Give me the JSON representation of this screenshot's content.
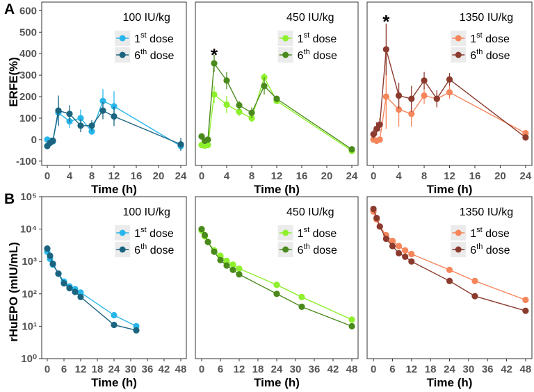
{
  "panel_labels": [
    "A",
    "B"
  ],
  "chart_data": [
    {
      "type": "line",
      "group": "A",
      "title": "100 IU/kg",
      "xlabel": "Time (h)",
      "ylabel": "ERFE(%)",
      "xlim": [
        -1,
        25
      ],
      "ylim": [
        -120,
        640
      ],
      "xticks": [
        0,
        4,
        8,
        12,
        16,
        20,
        24
      ],
      "yticks": [
        -100,
        0,
        100,
        200,
        300,
        400,
        500,
        600
      ],
      "series": [
        {
          "name": "1st dose",
          "color": "#29b6ea",
          "x": [
            0,
            0.5,
            1,
            2,
            4,
            6,
            8,
            10,
            12,
            24
          ],
          "y": [
            0,
            -5,
            -8,
            125,
            85,
            100,
            38,
            180,
            155,
            -30
          ],
          "err": [
            10,
            10,
            10,
            60,
            30,
            40,
            15,
            55,
            70,
            15
          ]
        },
        {
          "name": "6th dose",
          "color": "#1b6480",
          "x": [
            0,
            0.5,
            1,
            2,
            4,
            6,
            8,
            10,
            12,
            24
          ],
          "y": [
            -30,
            -15,
            -5,
            135,
            120,
            65,
            65,
            135,
            108,
            -22
          ],
          "err": [
            15,
            12,
            12,
            70,
            40,
            30,
            25,
            40,
            45,
            30
          ]
        }
      ],
      "star": null
    },
    {
      "type": "line",
      "group": "A",
      "title": "450 IU/kg",
      "xlabel": "Time (h)",
      "ylabel": "",
      "xlim": [
        -1,
        25
      ],
      "ylim": [
        -120,
        640
      ],
      "xticks": [
        0,
        4,
        8,
        12,
        16,
        20,
        24
      ],
      "yticks": [],
      "series": [
        {
          "name": "1st dose",
          "color": "#8ef02c",
          "x": [
            0,
            0.5,
            1,
            2,
            4,
            6,
            8,
            10,
            12,
            24
          ],
          "y": [
            -25,
            -28,
            -25,
            210,
            163,
            130,
            100,
            290,
            180,
            -52
          ],
          "err": [
            10,
            10,
            10,
            40,
            40,
            20,
            20,
            20,
            15,
            15
          ]
        },
        {
          "name": "6th dose",
          "color": "#4a8a1c",
          "x": [
            0,
            0.5,
            1,
            2,
            4,
            6,
            8,
            10,
            12,
            24
          ],
          "y": [
            15,
            -5,
            0,
            355,
            275,
            160,
            125,
            250,
            190,
            -45
          ],
          "err": [
            10,
            10,
            10,
            40,
            40,
            20,
            25,
            40,
            15,
            15
          ]
        }
      ],
      "star": {
        "label": "*",
        "x": 2,
        "y": 395
      }
    },
    {
      "type": "line",
      "group": "A",
      "title": "1350 IU/kg",
      "xlabel": "Time (h)",
      "ylabel": "",
      "xlim": [
        -1,
        25
      ],
      "ylim": [
        -120,
        640
      ],
      "xticks": [
        0,
        4,
        8,
        12,
        16,
        20,
        24
      ],
      "yticks": [],
      "series": [
        {
          "name": "1st dose",
          "color": "#f5855a",
          "x": [
            0,
            0.5,
            1,
            2,
            4,
            6,
            8,
            10,
            12,
            24
          ],
          "y": [
            0,
            -5,
            0,
            200,
            140,
            120,
            205,
            190,
            220,
            30
          ],
          "err": [
            10,
            10,
            10,
            150,
            80,
            60,
            40,
            30,
            30,
            15
          ]
        },
        {
          "name": "6th dose",
          "color": "#8b3a2e",
          "x": [
            0,
            0.5,
            1,
            2,
            4,
            6,
            8,
            10,
            12,
            24
          ],
          "y": [
            25,
            50,
            70,
            420,
            205,
            190,
            275,
            190,
            280,
            10
          ],
          "err": [
            20,
            30,
            30,
            120,
            60,
            60,
            40,
            40,
            30,
            15
          ]
        }
      ],
      "star": {
        "label": "*",
        "x": 2,
        "y": 550
      }
    },
    {
      "type": "line",
      "group": "B",
      "title": "100 IU/kg",
      "xlabel": "Time (h)",
      "ylabel": "rHuEPO (mIU/mL)",
      "yscale": "log",
      "xlim": [
        -2,
        50
      ],
      "ylim": [
        1,
        100000
      ],
      "xticks": [
        0,
        6,
        12,
        18,
        24,
        30,
        36,
        42,
        48
      ],
      "yticks": [
        1,
        10,
        100,
        1000,
        10000,
        100000
      ],
      "yticklabels": [
        "10⁰",
        "10¹",
        "10²",
        "10³",
        "10⁴",
        "10⁵"
      ],
      "series": [
        {
          "name": "1st dose",
          "color": "#29b6ea",
          "x": [
            0,
            1,
            2,
            4,
            6,
            8,
            10,
            12,
            24,
            32
          ],
          "y": [
            2000,
            1200,
            800,
            420,
            240,
            170,
            140,
            110,
            22,
            10
          ]
        },
        {
          "name": "6th dose",
          "color": "#1b6480",
          "x": [
            0,
            1,
            2,
            4,
            6,
            8,
            10,
            12,
            24,
            32
          ],
          "y": [
            2500,
            1500,
            850,
            420,
            210,
            150,
            115,
            80,
            11,
            7.5
          ]
        }
      ],
      "star": null
    },
    {
      "type": "line",
      "group": "B",
      "title": "450 IU/kg",
      "xlabel": "Time (h)",
      "ylabel": "",
      "yscale": "log",
      "xlim": [
        -2,
        50
      ],
      "ylim": [
        1,
        100000
      ],
      "xticks": [
        0,
        6,
        12,
        18,
        24,
        30,
        36,
        42,
        48
      ],
      "yticks": [],
      "series": [
        {
          "name": "1st dose",
          "color": "#8ef02c",
          "x": [
            0,
            1,
            2,
            4,
            6,
            8,
            10,
            12,
            24,
            32,
            48
          ],
          "y": [
            9000,
            6000,
            4000,
            2200,
            1500,
            1050,
            800,
            600,
            190,
            80,
            16
          ]
        },
        {
          "name": "6th dose",
          "color": "#4a8a1c",
          "x": [
            0,
            1,
            2,
            4,
            6,
            8,
            10,
            12,
            24,
            32,
            48
          ],
          "y": [
            10000,
            6500,
            4000,
            2000,
            1100,
            750,
            550,
            400,
            100,
            40,
            10
          ]
        }
      ],
      "star": null
    },
    {
      "type": "line",
      "group": "B",
      "title": "1350 IU/kg",
      "xlabel": "Time (h)",
      "ylabel": "",
      "yscale": "log",
      "xlim": [
        -2,
        50
      ],
      "ylim": [
        1,
        100000
      ],
      "xticks": [
        0,
        6,
        12,
        18,
        24,
        30,
        36,
        42,
        48
      ],
      "yticks": [],
      "series": [
        {
          "name": "1st dose",
          "color": "#f5855a",
          "x": [
            0,
            1,
            2,
            4,
            6,
            8,
            10,
            12,
            24,
            32,
            48
          ],
          "y": [
            35000,
            20000,
            12000,
            6500,
            4300,
            3000,
            2200,
            1700,
            550,
            250,
            65
          ]
        },
        {
          "name": "6th dose",
          "color": "#8b3a2e",
          "x": [
            0,
            1,
            2,
            4,
            6,
            8,
            10,
            12,
            24,
            32,
            48
          ],
          "y": [
            42000,
            22000,
            12000,
            5000,
            3000,
            1800,
            1400,
            1000,
            250,
            85,
            30
          ]
        }
      ],
      "star": null
    }
  ]
}
